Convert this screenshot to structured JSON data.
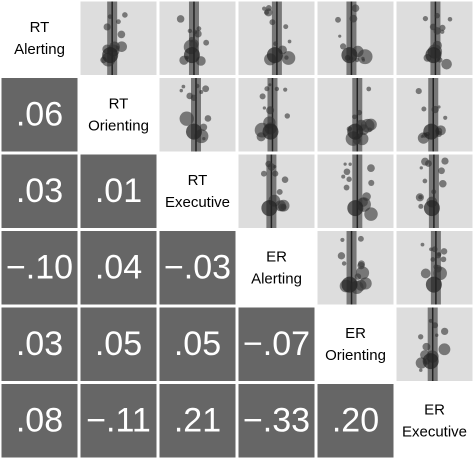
{
  "variables": [
    {
      "line1": "RT",
      "line2": "Alerting"
    },
    {
      "line1": "RT",
      "line2": "Orienting"
    },
    {
      "line1": "RT",
      "line2": "Executive"
    },
    {
      "line1": "ER",
      "line2": "Alerting"
    },
    {
      "line1": "ER",
      "line2": "Orienting"
    },
    {
      "line1": "ER",
      "line2": "Executive"
    }
  ],
  "correlations": [
    [
      ".06"
    ],
    [
      ".03",
      ".01"
    ],
    [
      "−.10",
      ".04",
      "−.03"
    ],
    [
      ".03",
      ".05",
      ".05",
      "−.07"
    ],
    [
      ".08",
      "−.11",
      ".21",
      "−.33",
      ".20"
    ]
  ]
}
